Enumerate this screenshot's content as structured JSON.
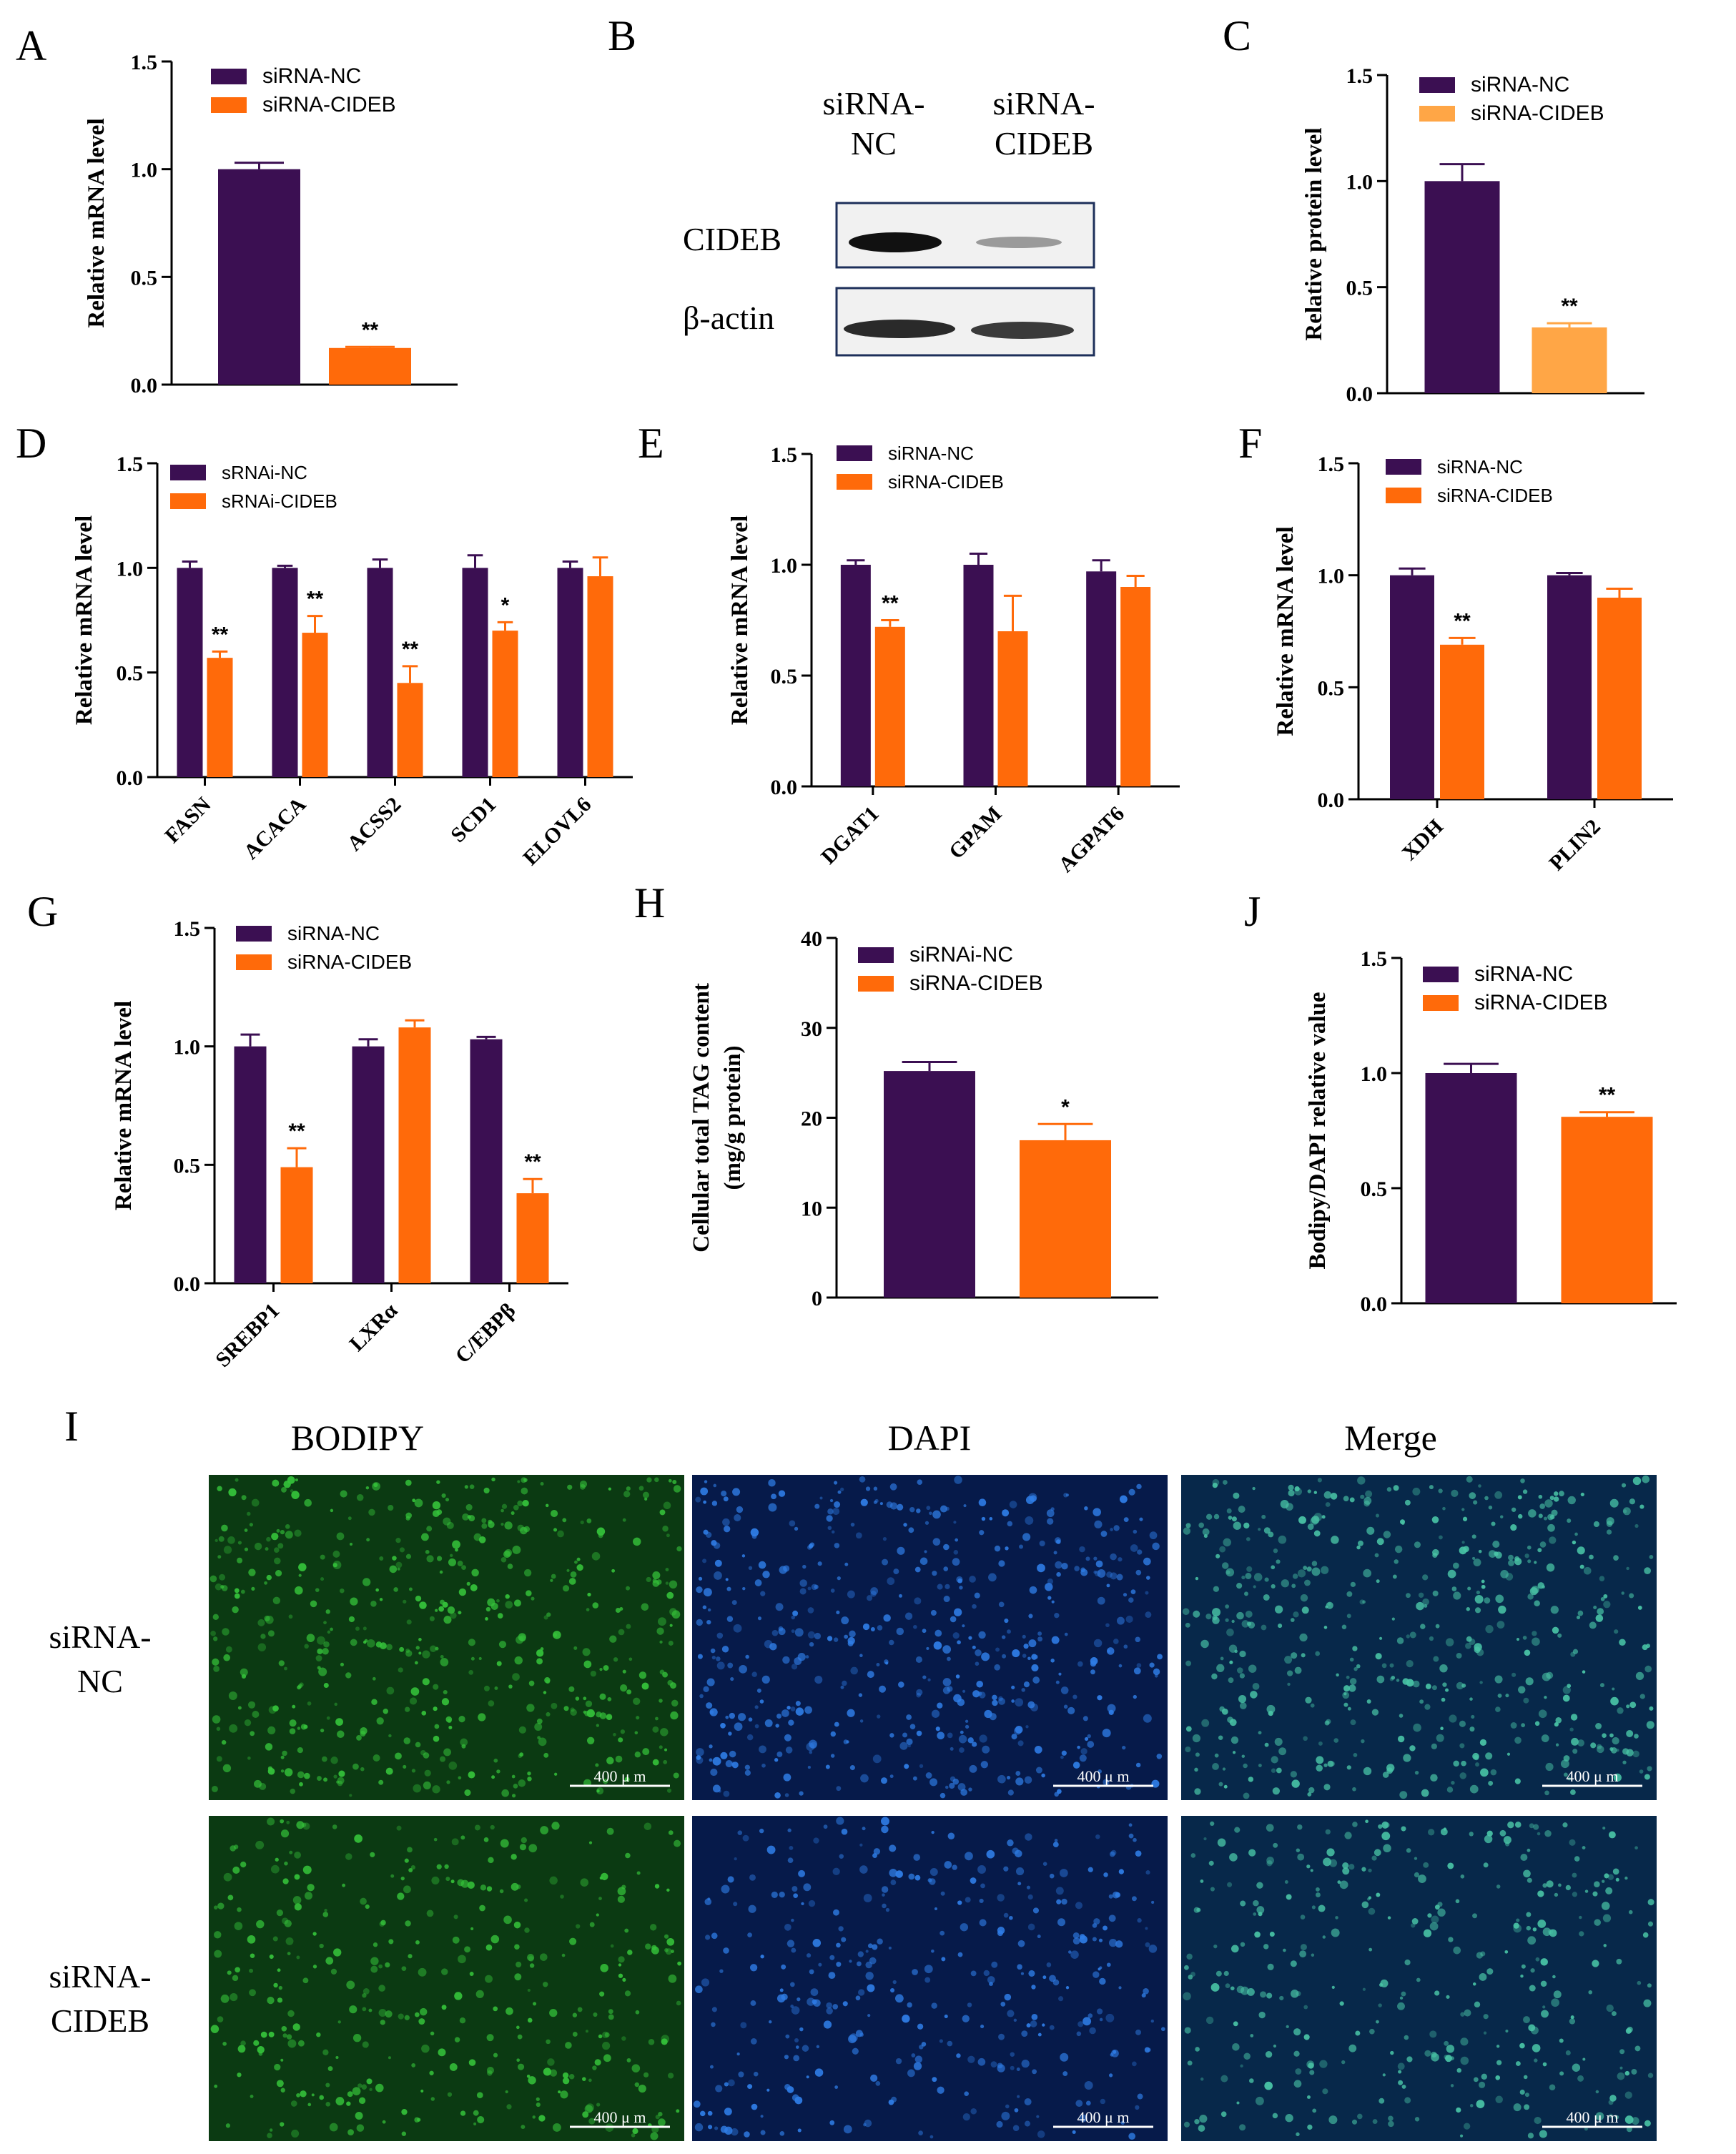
{
  "colors": {
    "nc": "#3b0f52",
    "cideb": "#ff6a0a",
    "cideb_light": "#ffa646",
    "axis": "#000000",
    "bodipy_fill": "#0b3a12",
    "bodipy_dot": "#35c23a",
    "dapi_fill": "#061a4a",
    "dapi_dot": "#2f7de6",
    "merge_fill": "#07284a",
    "merge_dot": "#49c4a6",
    "scale_bar": "#ffffff"
  },
  "panel_labels": {
    "a": "A",
    "b": "B",
    "c": "C",
    "d": "D",
    "e": "E",
    "f": "F",
    "g": "G",
    "h": "H",
    "j": "J",
    "i": "I"
  },
  "western": {
    "lane1": "siRNA-\nNC",
    "lane2": "siRNA-\nCIDEB",
    "row1": "CIDEB",
    "row2": "β-actin"
  },
  "imaging": {
    "columns": [
      "BODIPY",
      "DAPI",
      "Merge"
    ],
    "rows": [
      "siRNA-\nNC",
      "siRNA-\nCIDEB"
    ],
    "scale_label": "400 μ m"
  },
  "chart_data": [
    {
      "id": "A",
      "type": "bar",
      "categories": [
        ""
      ],
      "series": [
        {
          "name": "siRNA-NC",
          "values": [
            1.0
          ],
          "errors": [
            0.03
          ]
        },
        {
          "name": "siRNA-CIDEB",
          "values": [
            0.17
          ],
          "errors": [
            0.005
          ]
        }
      ],
      "significance": [
        "",
        "**"
      ],
      "ylabel": "Relative mRNA level",
      "ylim": [
        0,
        1.5
      ],
      "yticks": [
        "0.0",
        "0.5",
        "1.0",
        "1.5"
      ],
      "legend": "top"
    },
    {
      "id": "C",
      "type": "bar",
      "categories": [
        ""
      ],
      "series": [
        {
          "name": "siRNA-NC",
          "values": [
            1.0
          ],
          "errors": [
            0.08
          ]
        },
        {
          "name": "siRNA-CIDEB",
          "values": [
            0.31
          ],
          "errors": [
            0.02
          ]
        }
      ],
      "significance": [
        "",
        "**"
      ],
      "ylabel": "Relative protein level",
      "ylim": [
        0,
        1.5
      ],
      "yticks": [
        "0.0",
        "0.5",
        "1.0",
        "1.5"
      ],
      "legend": "top"
    },
    {
      "id": "D",
      "type": "bar",
      "categories": [
        "FASN",
        "ACACA",
        "ACSS2",
        "SCD1",
        "ELOVL6"
      ],
      "series": [
        {
          "name": "sRNAi-NC",
          "values": [
            1.0,
            1.0,
            1.0,
            1.0,
            1.0
          ],
          "errors": [
            0.03,
            0.01,
            0.04,
            0.06,
            0.03
          ]
        },
        {
          "name": "sRNAi-CIDEB",
          "values": [
            0.57,
            0.69,
            0.45,
            0.7,
            0.96
          ],
          "errors": [
            0.03,
            0.08,
            0.08,
            0.04,
            0.09
          ]
        }
      ],
      "significance": [
        "**",
        "**",
        "**",
        "*",
        ""
      ],
      "ylabel": "Relative mRNA level",
      "ylim": [
        0,
        1.5
      ],
      "yticks": [
        "0.0",
        "0.5",
        "1.0",
        "1.5"
      ],
      "legend": "top"
    },
    {
      "id": "E",
      "type": "bar",
      "categories": [
        "DGAT1",
        "GPAM",
        "AGPAT6"
      ],
      "series": [
        {
          "name": "siRNA-NC",
          "values": [
            1.0,
            1.0,
            0.97
          ],
          "errors": [
            0.02,
            0.05,
            0.05
          ]
        },
        {
          "name": "siRNA-CIDEB",
          "values": [
            0.72,
            0.7,
            0.9
          ],
          "errors": [
            0.03,
            0.16,
            0.05
          ]
        }
      ],
      "significance": [
        "**",
        "",
        ""
      ],
      "ylabel": "Relative mRNA level",
      "ylim": [
        0,
        1.5
      ],
      "yticks": [
        "0.0",
        "0.5",
        "1.0",
        "1.5"
      ],
      "legend": "top"
    },
    {
      "id": "F",
      "type": "bar",
      "categories": [
        "XDH",
        "PLIN2"
      ],
      "series": [
        {
          "name": "siRNA-NC",
          "values": [
            1.0,
            1.0
          ],
          "errors": [
            0.03,
            0.01
          ]
        },
        {
          "name": "siRNA-CIDEB",
          "values": [
            0.69,
            0.9
          ],
          "errors": [
            0.03,
            0.04
          ]
        }
      ],
      "significance": [
        "**",
        ""
      ],
      "ylabel": "Relative mRNA level",
      "ylim": [
        0,
        1.5
      ],
      "yticks": [
        "0.0",
        "0.5",
        "1.0",
        "1.5"
      ],
      "legend": "top"
    },
    {
      "id": "G",
      "type": "bar",
      "categories": [
        "SREBP1",
        "LXRα",
        "C/EBPβ"
      ],
      "series": [
        {
          "name": "siRNA-NC",
          "values": [
            1.0,
            1.0,
            1.03
          ],
          "errors": [
            0.05,
            0.03,
            0.01
          ]
        },
        {
          "name": "siRNA-CIDEB",
          "values": [
            0.49,
            1.08,
            0.38
          ],
          "errors": [
            0.08,
            0.03,
            0.06
          ]
        }
      ],
      "significance": [
        "**",
        "",
        "**"
      ],
      "ylabel": "Relative mRNA level",
      "ylim": [
        0,
        1.5
      ],
      "yticks": [
        "0.0",
        "0.5",
        "1.0",
        "1.5"
      ],
      "legend": "top"
    },
    {
      "id": "H",
      "type": "bar",
      "categories": [
        ""
      ],
      "series": [
        {
          "name": "siRNAi-NC",
          "values": [
            25.2
          ],
          "errors": [
            1.0
          ]
        },
        {
          "name": "siRNA-CIDEB",
          "values": [
            17.5
          ],
          "errors": [
            1.8
          ]
        }
      ],
      "significance": [
        "",
        "*"
      ],
      "ylabel": "Cellular total TAG content\n(mg/g protein)",
      "ylim": [
        0,
        40
      ],
      "yticks": [
        "0",
        "10",
        "20",
        "30",
        "40"
      ],
      "legend": "top"
    },
    {
      "id": "J",
      "type": "bar",
      "categories": [
        ""
      ],
      "series": [
        {
          "name": "siRNA-NC",
          "values": [
            1.0
          ],
          "errors": [
            0.04
          ]
        },
        {
          "name": "siRNA-CIDEB",
          "values": [
            0.81
          ],
          "errors": [
            0.02
          ]
        }
      ],
      "significance": [
        "",
        "**"
      ],
      "ylabel": "Bodipy/DAPI relative value",
      "ylim": [
        0,
        1.5
      ],
      "yticks": [
        "0.0",
        "0.5",
        "1.0",
        "1.5"
      ],
      "legend": "top"
    }
  ]
}
